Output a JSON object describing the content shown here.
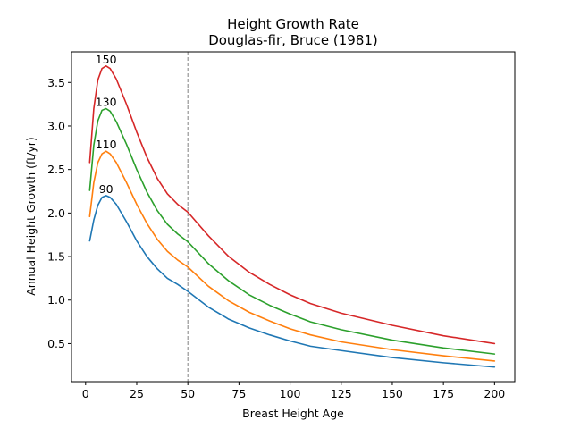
{
  "chart_data": {
    "type": "line",
    "title": "Height Growth Rate",
    "subtitle": "Douglas-fir, Bruce (1981)",
    "xlabel": "Breast Height Age",
    "ylabel": "Annual Height Growth (ft/yr)",
    "xlim": [
      -6.9,
      209.9
    ],
    "ylim": [
      0.063,
      3.852
    ],
    "xticks": [
      0,
      25,
      50,
      75,
      100,
      125,
      150,
      175,
      200
    ],
    "yticks": [
      0.5,
      1.0,
      1.5,
      2.0,
      2.5,
      3.0,
      3.5
    ],
    "ytick_labels": [
      "0.5",
      "1.0",
      "1.5",
      "2.0",
      "2.5",
      "3.0",
      "3.5"
    ],
    "reference_line": {
      "x": 50,
      "style": "dashed",
      "color": "#808080"
    },
    "grid": false,
    "series": [
      {
        "name": "90",
        "color": "#1f77b4",
        "x": [
          2,
          4,
          6,
          8,
          10,
          12,
          15,
          20,
          25,
          30,
          35,
          40,
          45,
          50,
          60,
          70,
          80,
          90,
          100,
          110,
          125,
          150,
          175,
          200
        ],
        "y": [
          1.68,
          1.92,
          2.09,
          2.18,
          2.2,
          2.18,
          2.1,
          1.9,
          1.68,
          1.5,
          1.36,
          1.25,
          1.18,
          1.1,
          0.92,
          0.78,
          0.68,
          0.6,
          0.53,
          0.47,
          0.42,
          0.34,
          0.28,
          0.23
        ]
      },
      {
        "name": "110",
        "color": "#ff7f0e",
        "x": [
          2,
          4,
          6,
          8,
          10,
          12,
          15,
          20,
          25,
          30,
          35,
          40,
          45,
          50,
          60,
          70,
          80,
          90,
          100,
          110,
          125,
          150,
          175,
          200
        ],
        "y": [
          1.96,
          2.35,
          2.58,
          2.68,
          2.71,
          2.68,
          2.58,
          2.35,
          2.1,
          1.88,
          1.7,
          1.56,
          1.46,
          1.38,
          1.16,
          0.99,
          0.86,
          0.76,
          0.67,
          0.6,
          0.52,
          0.43,
          0.36,
          0.3
        ]
      },
      {
        "name": "130",
        "color": "#2ca02c",
        "x": [
          2,
          4,
          6,
          8,
          10,
          12,
          15,
          20,
          25,
          30,
          35,
          40,
          45,
          50,
          60,
          70,
          80,
          90,
          100,
          110,
          125,
          150,
          175,
          200
        ],
        "y": [
          2.26,
          2.78,
          3.06,
          3.18,
          3.2,
          3.17,
          3.05,
          2.79,
          2.5,
          2.24,
          2.03,
          1.87,
          1.76,
          1.67,
          1.42,
          1.22,
          1.06,
          0.94,
          0.84,
          0.75,
          0.66,
          0.54,
          0.45,
          0.38
        ]
      },
      {
        "name": "150",
        "color": "#d62728",
        "x": [
          2,
          4,
          6,
          8,
          10,
          12,
          15,
          20,
          25,
          30,
          35,
          40,
          45,
          50,
          60,
          70,
          80,
          90,
          100,
          110,
          125,
          150,
          175,
          200
        ],
        "y": [
          2.58,
          3.2,
          3.53,
          3.66,
          3.69,
          3.66,
          3.54,
          3.25,
          2.93,
          2.64,
          2.4,
          2.22,
          2.1,
          2.01,
          1.74,
          1.5,
          1.32,
          1.18,
          1.06,
          0.96,
          0.85,
          0.71,
          0.59,
          0.5
        ]
      }
    ]
  }
}
